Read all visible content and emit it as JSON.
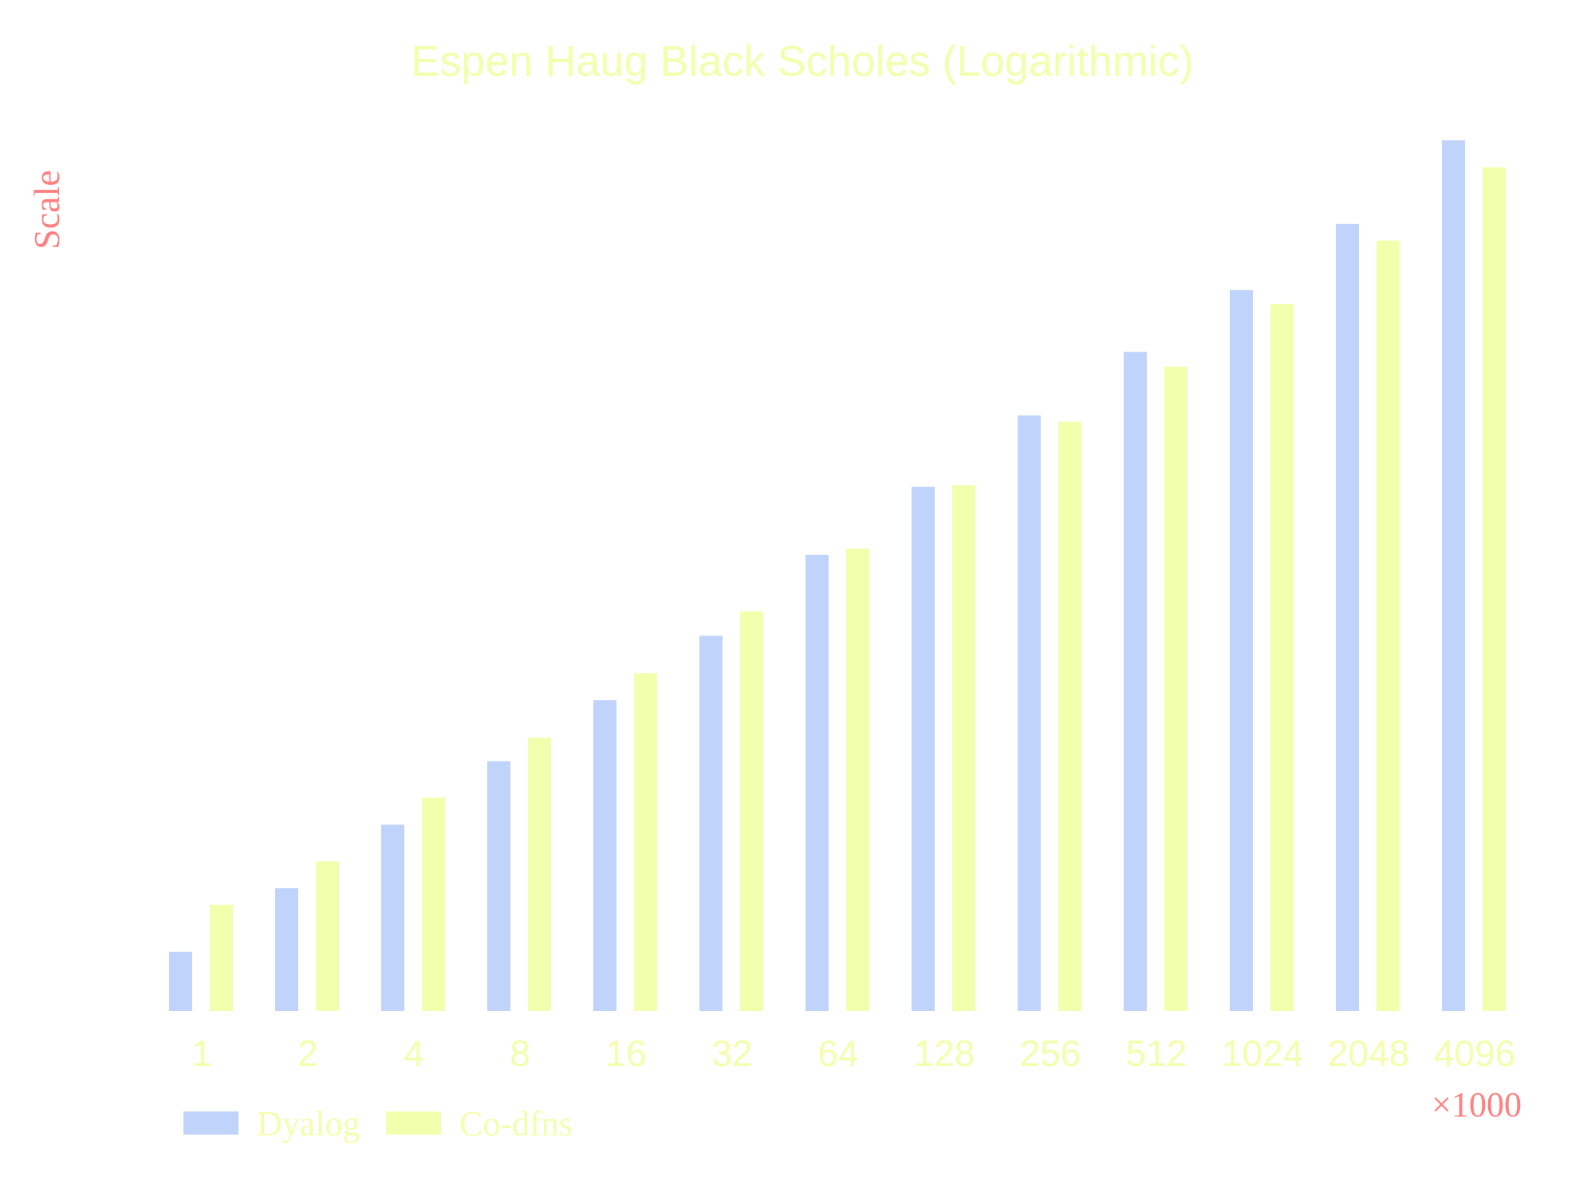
{
  "chart_data": {
    "type": "bar",
    "title": "Espen Haug Black Scholes (Logarithmic)",
    "ylabel": "Scale",
    "xunit": "×1000",
    "categories": [
      "1",
      "2",
      "4",
      "8",
      "16",
      "32",
      "64",
      "128",
      "256",
      "512",
      "1024",
      "2048",
      "4096"
    ],
    "ylim": [
      0,
      100
    ],
    "series": [
      {
        "name": "Dyalog",
        "color": "#c0d4fb",
        "values": [
          6.8,
          14.1,
          21.4,
          28.7,
          35.7,
          43.1,
          52.4,
          60.2,
          68.4,
          75.7,
          82.8,
          90.4,
          100.0
        ]
      },
      {
        "name": "Co-dfns",
        "color": "#f2ffac",
        "values": [
          12.2,
          17.2,
          24.5,
          31.4,
          38.8,
          45.9,
          53.1,
          60.4,
          67.7,
          74.0,
          81.2,
          88.5,
          96.9
        ]
      }
    ],
    "colors": {
      "title": "#f2ffac",
      "ticks": "#f2ffac",
      "ylabel": "#ff8080",
      "xunit": "#ff8080",
      "legend_text": "#f2ffac"
    },
    "grid": false,
    "legend": "bottom-left"
  }
}
